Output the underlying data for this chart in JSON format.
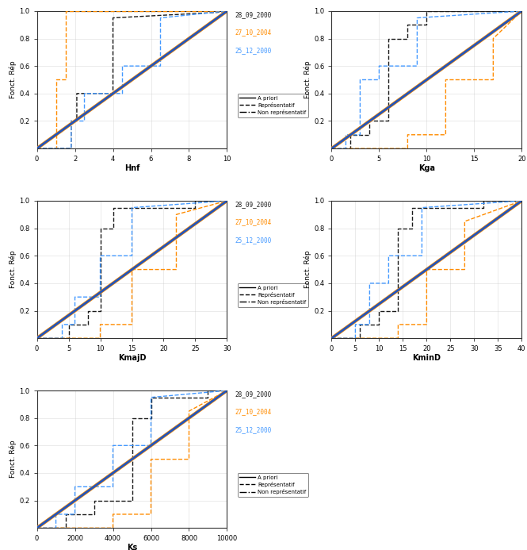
{
  "subplots": [
    {
      "xlabel": "Hnf",
      "xlim": [
        0,
        10
      ],
      "xticks": [
        0,
        2,
        4,
        6,
        8,
        10
      ],
      "events": [
        {
          "color": "#1a1a1a",
          "linestyle": "--",
          "x": [
            0,
            1.8,
            1.8,
            2.1,
            2.1,
            4.0,
            4.0,
            9.5,
            10
          ],
          "y": [
            0,
            0,
            0.2,
            0.2,
            0.4,
            0.4,
            0.95,
            0.99,
            1.0
          ]
        },
        {
          "color": "#FF8C00",
          "linestyle": "--",
          "x": [
            0,
            1.0,
            1.0,
            1.5,
            1.5,
            10
          ],
          "y": [
            0,
            0,
            0.5,
            0.5,
            1.0,
            1.0
          ]
        },
        {
          "color": "#4499FF",
          "linestyle": "--",
          "x": [
            0,
            1.8,
            1.8,
            2.5,
            2.5,
            4.5,
            4.5,
            6.5,
            6.5,
            10
          ],
          "y": [
            0,
            0,
            0.2,
            0.2,
            0.4,
            0.4,
            0.6,
            0.6,
            0.95,
            1.0
          ]
        }
      ]
    },
    {
      "xlabel": "Kga",
      "xlim": [
        0,
        20
      ],
      "xticks": [
        0,
        5,
        10,
        15,
        20
      ],
      "events": [
        {
          "color": "#1a1a1a",
          "linestyle": "--",
          "x": [
            0,
            2.0,
            2.0,
            4.0,
            4.0,
            6.0,
            6.0,
            8.0,
            8.0,
            10.0,
            10.0,
            20
          ],
          "y": [
            0,
            0,
            0.1,
            0.1,
            0.2,
            0.2,
            0.8,
            0.8,
            0.9,
            0.9,
            1.0,
            1.0
          ]
        },
        {
          "color": "#FF8C00",
          "linestyle": "--",
          "x": [
            0,
            8.0,
            8.0,
            12.0,
            12.0,
            17.0,
            17.0,
            20
          ],
          "y": [
            0,
            0,
            0.1,
            0.1,
            0.5,
            0.5,
            0.8,
            1.0
          ]
        },
        {
          "color": "#4499FF",
          "linestyle": "--",
          "x": [
            0,
            1.5,
            1.5,
            3.0,
            3.0,
            5.0,
            5.0,
            9.0,
            9.0,
            20
          ],
          "y": [
            0,
            0,
            0.1,
            0.1,
            0.5,
            0.5,
            0.6,
            0.6,
            0.95,
            1.0
          ]
        }
      ]
    },
    {
      "xlabel": "KmajD",
      "xlim": [
        0,
        30
      ],
      "xticks": [
        0,
        5,
        10,
        15,
        20,
        25,
        30
      ],
      "events": [
        {
          "color": "#1a1a1a",
          "linestyle": "--",
          "x": [
            0,
            5.0,
            5.0,
            8.0,
            8.0,
            10.0,
            10.0,
            12.0,
            12.0,
            25.0,
            25.0,
            30
          ],
          "y": [
            0,
            0,
            0.1,
            0.1,
            0.2,
            0.2,
            0.8,
            0.8,
            0.95,
            0.95,
            1.0,
            1.0
          ]
        },
        {
          "color": "#FF8C00",
          "linestyle": "--",
          "x": [
            0,
            10.0,
            10.0,
            15.0,
            15.0,
            22.0,
            22.0,
            30
          ],
          "y": [
            0,
            0,
            0.1,
            0.1,
            0.5,
            0.5,
            0.9,
            1.0
          ]
        },
        {
          "color": "#4499FF",
          "linestyle": "--",
          "x": [
            0,
            4.0,
            4.0,
            6.0,
            6.0,
            10.0,
            10.0,
            15.0,
            15.0,
            30
          ],
          "y": [
            0,
            0,
            0.1,
            0.1,
            0.3,
            0.3,
            0.6,
            0.6,
            0.95,
            1.0
          ]
        }
      ]
    },
    {
      "xlabel": "KminD",
      "xlim": [
        0,
        40
      ],
      "xticks": [
        0,
        5,
        10,
        15,
        20,
        25,
        30,
        35,
        40
      ],
      "events": [
        {
          "color": "#1a1a1a",
          "linestyle": "--",
          "x": [
            0,
            6.0,
            6.0,
            10.0,
            10.0,
            14.0,
            14.0,
            17.0,
            17.0,
            32.0,
            32.0,
            40
          ],
          "y": [
            0,
            0,
            0.1,
            0.1,
            0.2,
            0.2,
            0.8,
            0.8,
            0.95,
            0.95,
            1.0,
            1.0
          ]
        },
        {
          "color": "#FF8C00",
          "linestyle": "--",
          "x": [
            0,
            14.0,
            14.0,
            20.0,
            20.0,
            28.0,
            28.0,
            40
          ],
          "y": [
            0,
            0,
            0.1,
            0.1,
            0.5,
            0.5,
            0.85,
            1.0
          ]
        },
        {
          "color": "#4499FF",
          "linestyle": "--",
          "x": [
            0,
            5.0,
            5.0,
            8.0,
            8.0,
            12.0,
            12.0,
            19.0,
            19.0,
            40
          ],
          "y": [
            0,
            0,
            0.1,
            0.1,
            0.4,
            0.4,
            0.6,
            0.6,
            0.95,
            1.0
          ]
        }
      ]
    },
    {
      "xlabel": "Ks",
      "xlim": [
        0,
        10000
      ],
      "xticks": [
        0,
        2000,
        4000,
        6000,
        8000,
        10000
      ],
      "events": [
        {
          "color": "#1a1a1a",
          "linestyle": "--",
          "x": [
            0,
            1500,
            1500,
            3000,
            3000,
            5000,
            5000,
            6000,
            6000,
            9000,
            9000,
            10000
          ],
          "y": [
            0,
            0,
            0.1,
            0.1,
            0.2,
            0.2,
            0.8,
            0.8,
            0.95,
            0.95,
            1.0,
            1.0
          ]
        },
        {
          "color": "#FF8C00",
          "linestyle": "--",
          "x": [
            0,
            4000,
            4000,
            6000,
            6000,
            8000,
            8000,
            10000
          ],
          "y": [
            0,
            0,
            0.1,
            0.1,
            0.5,
            0.5,
            0.85,
            1.0
          ]
        },
        {
          "color": "#4499FF",
          "linestyle": "--",
          "x": [
            0,
            1000,
            1000,
            2000,
            2000,
            4000,
            4000,
            6000,
            6000,
            10000
          ],
          "y": [
            0,
            0,
            0.1,
            0.1,
            0.3,
            0.3,
            0.6,
            0.6,
            0.95,
            1.0
          ]
        }
      ]
    }
  ],
  "apriori_blue": "#2255BB",
  "apriori_orange": "#FF8C00",
  "apriori_lw": 2.0,
  "event_lw": 1.0,
  "ylabel": "Fonct. Rép",
  "date_labels": [
    "28_09_2000",
    "27_10_2004",
    "25_12_2000"
  ],
  "date_colors": [
    "#1a1a1a",
    "#FF8C00",
    "#4499FF"
  ],
  "legend_entries": [
    "A priori",
    "Représentatif",
    "Non représentatif"
  ],
  "legend_styles": [
    "-",
    "--",
    "-."
  ],
  "bg_color": "#ffffff",
  "grid_color": "#cccccc",
  "grid_alpha": 0.7
}
